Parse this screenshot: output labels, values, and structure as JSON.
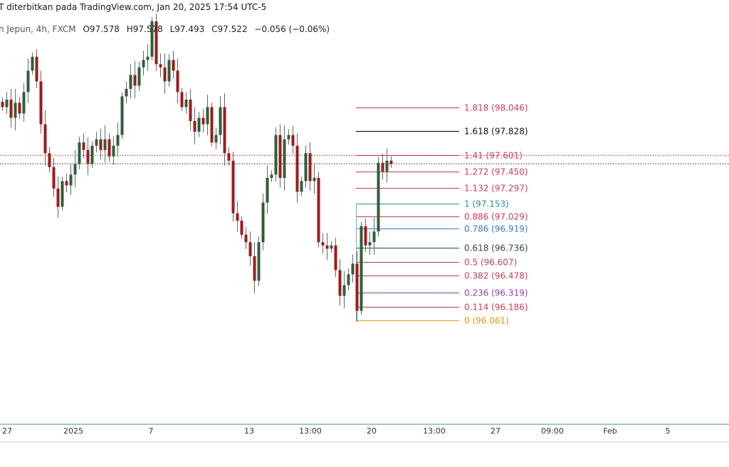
{
  "header": {
    "published": "T diterbitkan pada TradingView.com, Jan 20, 2025 17:54 UTC-5",
    "symbol": "n Jepun, 4h, FXCM",
    "open": "O97.578",
    "high": "H97.578",
    "low": "L97.493",
    "close": "C97.522",
    "change": "−0.056 (−0.06%)"
  },
  "chart_data": {
    "type": "candlestick",
    "title": "",
    "price_range": [
      95.1,
      99.05
    ],
    "first_open": 98.1,
    "closes": [
      98.05,
      98.12,
      97.95,
      98.09,
      97.99,
      98.19,
      98.39,
      98.52,
      98.29,
      97.89,
      97.62,
      97.49,
      97.29,
      97.12,
      97.36,
      97.32,
      97.42,
      97.52,
      97.72,
      97.65,
      97.52,
      97.69,
      97.75,
      97.65,
      97.75,
      97.59,
      97.69,
      97.79,
      98.15,
      98.22,
      98.35,
      98.25,
      98.42,
      98.49,
      98.52,
      98.85,
      98.45,
      98.42,
      98.29,
      98.49,
      98.39,
      98.19,
      98.05,
      98.12,
      97.92,
      97.82,
      97.95,
      97.89,
      98.05,
      97.72,
      97.79,
      98.05,
      97.62,
      97.55,
      97.06,
      96.99,
      96.86,
      96.79,
      96.66,
      96.43,
      96.79,
      97.16,
      97.39,
      97.42,
      97.79,
      97.39,
      97.75,
      97.79,
      97.69,
      97.26,
      97.36,
      97.62,
      97.36,
      97.39,
      96.79,
      96.76,
      96.73,
      96.76,
      96.53,
      96.29,
      96.39,
      96.49,
      96.59,
      96.15,
      96.94,
      96.76,
      96.79,
      96.89,
      97.53,
      97.45,
      97.55,
      97.52
    ],
    "up_color": "#2e5e3a",
    "down_color": "#9b1c1c",
    "x_tick_labels": [
      "27",
      "2025",
      "7",
      "13",
      "13:00",
      "20",
      "13:00",
      "27",
      "09:00",
      "Feb",
      "5"
    ],
    "price_lines": [
      {
        "price": 97.6,
        "style": "dotted",
        "color": "#b22222"
      },
      {
        "price": 97.522,
        "style": "dotted",
        "color": "#222222"
      }
    ],
    "fibonacci": {
      "levels": [
        {
          "ratio": "1.818",
          "price": 98.046,
          "label": "1.818 (98.046)",
          "color": "#c0394b",
          "text_color": "#c83e52"
        },
        {
          "ratio": "1.618",
          "price": 97.828,
          "label": "1.618 (97.828)",
          "color": "#000000",
          "text_color": "#111111"
        },
        {
          "ratio": "1.41",
          "price": 97.601,
          "label": "1.41 (97.601)",
          "color": "#c0394b",
          "text_color": "#c83e52"
        },
        {
          "ratio": "1.272",
          "price": 97.45,
          "label": "1.272 (97.450)",
          "color": "#c0394b",
          "text_color": "#c83e52"
        },
        {
          "ratio": "1.132",
          "price": 97.297,
          "label": "1.132 (97.297)",
          "color": "#c0394b",
          "text_color": "#c83e52"
        },
        {
          "ratio": "1",
          "price": 97.153,
          "label": "1 (97.153)",
          "color": "#2a8a8a",
          "text_color": "#2a9090"
        },
        {
          "ratio": "0.886",
          "price": 97.029,
          "label": "0.886 (97.029)",
          "color": "#c0394b",
          "text_color": "#c83e52"
        },
        {
          "ratio": "0.786",
          "price": 96.919,
          "label": "0.786 (96.919)",
          "color": "#3a78c0",
          "text_color": "#3a78c0"
        },
        {
          "ratio": "0.618",
          "price": 96.736,
          "label": "0.618 (96.736)",
          "color": "#1e5a2a",
          "text_color": "#2a4a30"
        },
        {
          "ratio": "0.5",
          "price": 96.607,
          "label": "0.5 (96.607)",
          "color": "#c0394b",
          "text_color": "#c83e52"
        },
        {
          "ratio": "0.382",
          "price": 96.478,
          "label": "0.382 (96.478)",
          "color": "#c0394b",
          "text_color": "#c83e52"
        },
        {
          "ratio": "0.236",
          "price": 96.319,
          "label": "0.236 (96.319)",
          "color": "#8a3fa8",
          "text_color": "#8a3fa8"
        },
        {
          "ratio": "0.114",
          "price": 96.186,
          "label": "0.114 (96.186)",
          "color": "#c0394b",
          "text_color": "#c83e52"
        },
        {
          "ratio": "0",
          "price": 96.061,
          "label": "0 (96.061)",
          "color": "#e8a317",
          "text_color": "#e09a10"
        }
      ]
    }
  }
}
